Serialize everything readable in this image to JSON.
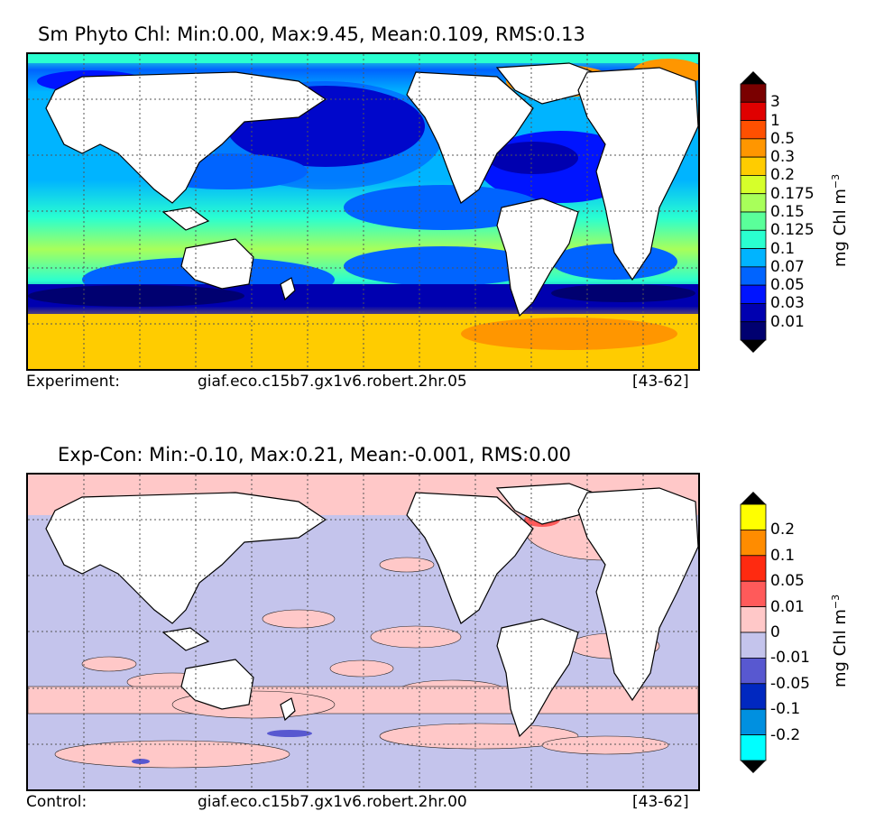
{
  "panels": [
    {
      "title": "Sm Phyto Chl: Min:0.00, Max:9.45, Mean:0.109, RMS:0.13",
      "caption_left": "Experiment:",
      "caption_mid": "giaf.eco.c15b7.gx1v6.robert.2hr.05",
      "caption_right": "[43-62]",
      "colorbar": {
        "units": "mg Chl m",
        "units_sup": "−3",
        "ticks": [
          "3",
          "1",
          "0.5",
          "0.3",
          "0.2",
          "0.175",
          "0.15",
          "0.125",
          "0.1",
          "0.07",
          "0.05",
          "0.03",
          "0.01"
        ],
        "colors": [
          "#7a0000",
          "#e00000",
          "#ff5000",
          "#ff9600",
          "#ffcc00",
          "#d6ff2a",
          "#a8ff5a",
          "#5aff9a",
          "#2affd0",
          "#00b4ff",
          "#0064ff",
          "#0014ff",
          "#0000b0",
          "#000070"
        ]
      }
    },
    {
      "title": "Exp-Con: Min:-0.10, Max:0.21, Mean:-0.001, RMS:0.00",
      "caption_left": "Control:",
      "caption_mid": "giaf.eco.c15b7.gx1v6.robert.2hr.00",
      "caption_right": "[43-62]",
      "colorbar": {
        "units": "mg Chl m",
        "units_sup": "−3",
        "ticks": [
          "0.2",
          "0.1",
          "0.05",
          "0.01",
          "0",
          "-0.01",
          "-0.05",
          "-0.1",
          "-0.2"
        ],
        "colors": [
          "#ffff00",
          "#ff8c00",
          "#ff2a10",
          "#ff5a5a",
          "#ffc8c8",
          "#c4c4ec",
          "#5858d0",
          "#0028c0",
          "#0090e0",
          "#00ffff"
        ]
      }
    }
  ]
}
